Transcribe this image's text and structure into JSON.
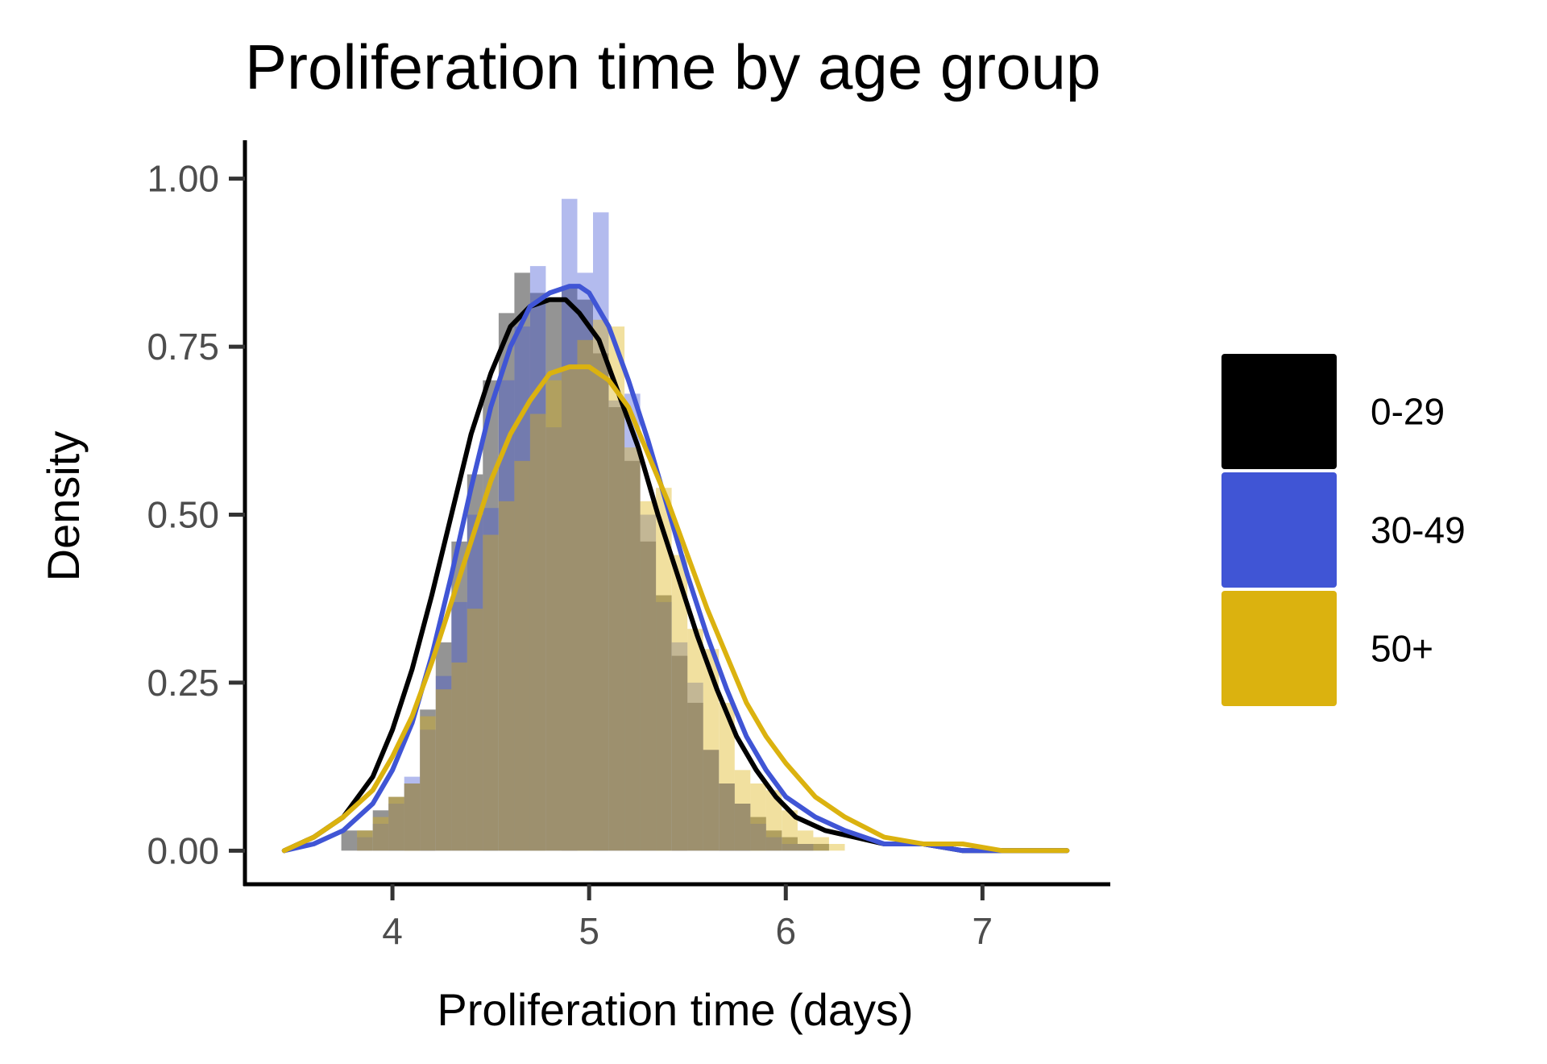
{
  "chart_data": {
    "type": "histogram+density",
    "title": "Proliferation time by age group",
    "xlabel": "Proliferation time (days)",
    "ylabel": "Density",
    "xlim": [
      3.25,
      7.65
    ],
    "ylim": [
      -0.05,
      1.05
    ],
    "x_ticks": [
      4,
      5,
      6,
      7
    ],
    "x_tick_labels": [
      "4",
      "5",
      "6",
      "7"
    ],
    "y_ticks": [
      0,
      0.25,
      0.5,
      0.75,
      1.0
    ],
    "y_tick_labels": [
      "0.00",
      "0.25",
      "0.50",
      "0.75",
      "1.00"
    ],
    "grid": false,
    "legend_position": "right",
    "bin_width": 0.08,
    "series": [
      {
        "name": "0-29",
        "color": "#000000",
        "bar_opacity": 0.42,
        "histogram": {
          "x_start": 3.5,
          "values": [
            0.0,
            0.0,
            0.0,
            0.03,
            0.03,
            0.06,
            0.08,
            0.1,
            0.21,
            0.31,
            0.46,
            0.56,
            0.7,
            0.8,
            0.86,
            0.83,
            0.82,
            0.84,
            0.82,
            0.74,
            0.66,
            0.58,
            0.46,
            0.38,
            0.29,
            0.22,
            0.15,
            0.1,
            0.07,
            0.05,
            0.03,
            0.02,
            0.01,
            0.01,
            0.0,
            0.0,
            0.0
          ]
        },
        "density": {
          "x": [
            3.45,
            3.6,
            3.75,
            3.9,
            4.0,
            4.1,
            4.2,
            4.3,
            4.4,
            4.5,
            4.6,
            4.7,
            4.8,
            4.88,
            4.95,
            5.05,
            5.15,
            5.25,
            5.35,
            5.45,
            5.55,
            5.65,
            5.75,
            5.85,
            5.95,
            6.05,
            6.2,
            6.35,
            6.5,
            6.7,
            6.9,
            7.1,
            7.3,
            7.43
          ],
          "y": [
            0.0,
            0.02,
            0.05,
            0.11,
            0.18,
            0.27,
            0.38,
            0.5,
            0.62,
            0.71,
            0.78,
            0.81,
            0.82,
            0.82,
            0.8,
            0.76,
            0.68,
            0.6,
            0.5,
            0.41,
            0.32,
            0.24,
            0.17,
            0.12,
            0.08,
            0.05,
            0.03,
            0.02,
            0.01,
            0.01,
            0.0,
            0.0,
            0.0,
            0.0
          ]
        }
      },
      {
        "name": "30-49",
        "color": "#4055d5",
        "bar_opacity": 0.4,
        "histogram": {
          "x_start": 3.5,
          "values": [
            0.0,
            0.0,
            0.0,
            0.0,
            0.02,
            0.04,
            0.07,
            0.11,
            0.18,
            0.26,
            0.37,
            0.5,
            0.51,
            0.7,
            0.78,
            0.87,
            0.63,
            0.97,
            0.86,
            0.95,
            0.67,
            0.68,
            0.5,
            0.37,
            0.31,
            0.25,
            0.15,
            0.1,
            0.07,
            0.04,
            0.02,
            0.01,
            0.01,
            0.0,
            0.0,
            0.0,
            0.0
          ]
        },
        "density": {
          "x": [
            3.45,
            3.6,
            3.75,
            3.9,
            4.0,
            4.1,
            4.2,
            4.3,
            4.4,
            4.5,
            4.6,
            4.7,
            4.8,
            4.9,
            4.95,
            5.0,
            5.1,
            5.2,
            5.3,
            5.4,
            5.5,
            5.6,
            5.7,
            5.8,
            5.9,
            6.0,
            6.15,
            6.3,
            6.5,
            6.7,
            6.9,
            7.1,
            7.3,
            7.43
          ],
          "y": [
            0.0,
            0.01,
            0.03,
            0.07,
            0.12,
            0.19,
            0.29,
            0.41,
            0.54,
            0.66,
            0.75,
            0.81,
            0.83,
            0.84,
            0.84,
            0.83,
            0.78,
            0.7,
            0.61,
            0.51,
            0.41,
            0.32,
            0.24,
            0.17,
            0.12,
            0.08,
            0.05,
            0.03,
            0.01,
            0.01,
            0.0,
            0.0,
            0.0,
            0.0
          ]
        }
      },
      {
        "name": "50+",
        "color": "#dbb20f",
        "bar_opacity": 0.4,
        "histogram": {
          "x_start": 3.5,
          "values": [
            0.0,
            0.0,
            0.0,
            0.0,
            0.03,
            0.05,
            0.08,
            0.1,
            0.2,
            0.24,
            0.28,
            0.36,
            0.47,
            0.52,
            0.58,
            0.65,
            0.7,
            0.72,
            0.76,
            0.79,
            0.78,
            0.6,
            0.52,
            0.54,
            0.44,
            0.33,
            0.3,
            0.22,
            0.12,
            0.1,
            0.09,
            0.06,
            0.03,
            0.02,
            0.01,
            0.0,
            0.0
          ]
        },
        "density": {
          "x": [
            3.45,
            3.6,
            3.75,
            3.9,
            4.0,
            4.1,
            4.2,
            4.3,
            4.4,
            4.5,
            4.6,
            4.7,
            4.8,
            4.9,
            5.0,
            5.1,
            5.2,
            5.3,
            5.4,
            5.5,
            5.6,
            5.7,
            5.8,
            5.9,
            6.0,
            6.15,
            6.3,
            6.5,
            6.7,
            6.9,
            7.1,
            7.3,
            7.43
          ],
          "y": [
            0.0,
            0.02,
            0.05,
            0.09,
            0.14,
            0.2,
            0.28,
            0.37,
            0.46,
            0.55,
            0.62,
            0.67,
            0.71,
            0.72,
            0.72,
            0.7,
            0.66,
            0.59,
            0.52,
            0.44,
            0.36,
            0.29,
            0.22,
            0.17,
            0.13,
            0.08,
            0.05,
            0.02,
            0.01,
            0.01,
            0.0,
            0.0,
            0.0
          ]
        }
      }
    ]
  }
}
